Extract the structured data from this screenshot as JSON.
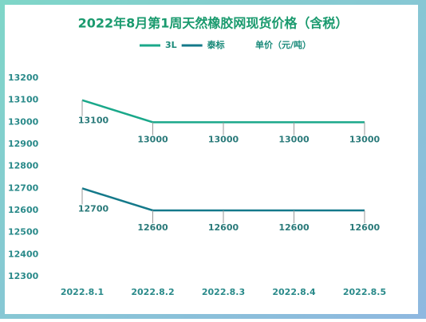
{
  "chart_data": {
    "type": "line",
    "title": "2022年8月第1周天然橡胶网现货价格（含税）",
    "y_label": "单价（元/吨）",
    "categories": [
      "2022.8.1",
      "2022.8.2",
      "2022.8.3",
      "2022.8.4",
      "2022.8.5"
    ],
    "series": [
      {
        "name": "3L",
        "color": "#1aa88a",
        "values": [
          13100,
          13000,
          13000,
          13000,
          13000
        ]
      },
      {
        "name": "泰标",
        "color": "#14798a",
        "values": [
          12700,
          12600,
          12600,
          12600,
          12600
        ]
      }
    ],
    "ylim": [
      12300,
      13200
    ],
    "yticks": [
      12300,
      12400,
      12500,
      12600,
      12700,
      12800,
      12900,
      13000,
      13100,
      13200
    ],
    "grid": false
  }
}
